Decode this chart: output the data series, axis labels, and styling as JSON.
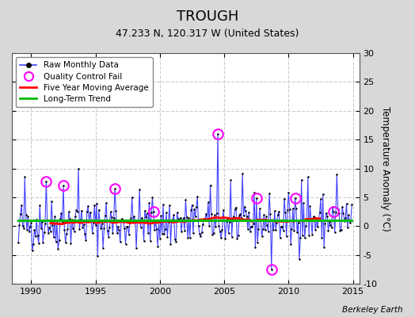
{
  "title": "TROUGH",
  "subtitle": "47.233 N, 120.317 W (United States)",
  "title_fontsize": 13,
  "subtitle_fontsize": 9,
  "ylabel": "Temperature Anomaly (°C)",
  "ylabel_fontsize": 8.5,
  "ylim": [
    -10,
    30
  ],
  "yticks": [
    -10,
    -5,
    0,
    5,
    10,
    15,
    20,
    25,
    30
  ],
  "xlim": [
    1988.5,
    2015.5
  ],
  "xticks": [
    1990,
    1995,
    2000,
    2005,
    2010,
    2015
  ],
  "figure_bg_color": "#d8d8d8",
  "plot_bg_color": "#ffffff",
  "grid_color": "#cccccc",
  "raw_line_color": "#4444ff",
  "raw_marker_color": "#000000",
  "moving_avg_color": "#ff0000",
  "trend_color": "#00bb00",
  "qc_fail_color": "#ff00ff",
  "footer_text": "Berkeley Earth",
  "start_year": 1989,
  "end_year": 2014,
  "seed": 42
}
